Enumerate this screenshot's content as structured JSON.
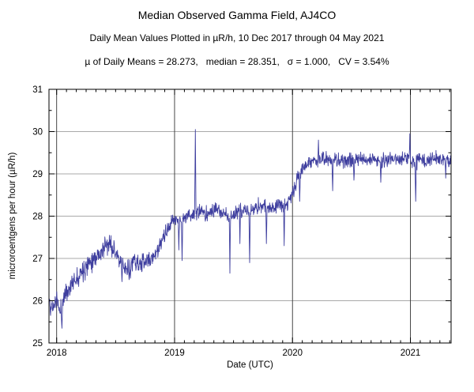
{
  "chart_data": {
    "type": "line",
    "title": "Median Observed Gamma Field, AJ4CO",
    "subtitle": "Daily Mean Values Plotted in µR/h, 10 Dec 2017 through 04 May 2021",
    "stats_line": "µ of Daily Means = 28.273,   median = 28.351,   σ = 1.000,   CV = 3.54%",
    "xlabel": "Date (UTC)",
    "ylabel": "microroentgens per hour (µR/h)",
    "series_name": "daily-mean-gamma-field",
    "line_color": "#3f3f9f",
    "x_start": 2017.935,
    "x_end": 2021.345,
    "ylim": [
      25,
      31
    ],
    "yticks": [
      25,
      26,
      27,
      28,
      29,
      30,
      31
    ],
    "xticks": [
      2018,
      2019,
      2020,
      2021
    ],
    "grid": true,
    "legend": "none",
    "noise_seed": 11,
    "trend_points": [
      [
        2017.935,
        26.0
      ],
      [
        2017.97,
        25.85
      ],
      [
        2018.0,
        26.05
      ],
      [
        2018.03,
        25.7
      ],
      [
        2018.06,
        26.1
      ],
      [
        2018.12,
        26.35
      ],
      [
        2018.18,
        26.6
      ],
      [
        2018.24,
        26.8
      ],
      [
        2018.3,
        27.0
      ],
      [
        2018.36,
        27.1
      ],
      [
        2018.42,
        27.3
      ],
      [
        2018.46,
        27.35
      ],
      [
        2018.5,
        27.15
      ],
      [
        2018.54,
        26.85
      ],
      [
        2018.58,
        26.75
      ],
      [
        2018.62,
        26.8
      ],
      [
        2018.66,
        26.95
      ],
      [
        2018.7,
        26.85
      ],
      [
        2018.74,
        26.9
      ],
      [
        2018.78,
        26.95
      ],
      [
        2018.82,
        27.05
      ],
      [
        2018.86,
        27.2
      ],
      [
        2018.9,
        27.45
      ],
      [
        2018.94,
        27.65
      ],
      [
        2018.98,
        27.9
      ],
      [
        2019.02,
        27.95
      ],
      [
        2019.06,
        27.85
      ],
      [
        2019.1,
        28.0
      ],
      [
        2019.16,
        28.05
      ],
      [
        2019.22,
        28.1
      ],
      [
        2019.28,
        28.05
      ],
      [
        2019.34,
        28.15
      ],
      [
        2019.4,
        28.1
      ],
      [
        2019.46,
        28.0
      ],
      [
        2019.52,
        28.05
      ],
      [
        2019.58,
        28.15
      ],
      [
        2019.64,
        28.1
      ],
      [
        2019.7,
        28.2
      ],
      [
        2019.76,
        28.25
      ],
      [
        2019.82,
        28.2
      ],
      [
        2019.88,
        28.3
      ],
      [
        2019.94,
        28.25
      ],
      [
        2020.0,
        28.5
      ],
      [
        2020.04,
        28.85
      ],
      [
        2020.08,
        29.1
      ],
      [
        2020.12,
        29.25
      ],
      [
        2020.18,
        29.3
      ],
      [
        2020.25,
        29.35
      ],
      [
        2020.32,
        29.3
      ],
      [
        2020.4,
        29.35
      ],
      [
        2020.48,
        29.3
      ],
      [
        2020.56,
        29.35
      ],
      [
        2020.64,
        29.3
      ],
      [
        2020.72,
        29.35
      ],
      [
        2020.8,
        29.3
      ],
      [
        2020.88,
        29.35
      ],
      [
        2020.96,
        29.4
      ],
      [
        2021.02,
        29.25
      ],
      [
        2021.08,
        29.35
      ],
      [
        2021.16,
        29.3
      ],
      [
        2021.24,
        29.35
      ],
      [
        2021.345,
        29.3
      ]
    ],
    "noise_amplitude": [
      [
        2017.935,
        0.16
      ],
      [
        2018.2,
        0.2
      ],
      [
        2018.6,
        0.2
      ],
      [
        2019.0,
        0.14
      ],
      [
        2019.4,
        0.15
      ],
      [
        2019.8,
        0.17
      ],
      [
        2020.1,
        0.14
      ],
      [
        2020.6,
        0.14
      ],
      [
        2021.345,
        0.14
      ]
    ],
    "spikes": [
      [
        2017.95,
        25.65
      ],
      [
        2018.045,
        25.35
      ],
      [
        2018.555,
        26.45
      ],
      [
        2018.615,
        26.5
      ],
      [
        2019.035,
        27.2
      ],
      [
        2019.065,
        26.95
      ],
      [
        2019.175,
        30.05
      ],
      [
        2019.47,
        26.65
      ],
      [
        2019.555,
        27.35
      ],
      [
        2019.635,
        26.9
      ],
      [
        2019.78,
        27.35
      ],
      [
        2019.93,
        27.3
      ],
      [
        2020.06,
        28.35
      ],
      [
        2020.22,
        29.8
      ],
      [
        2020.34,
        28.6
      ],
      [
        2020.52,
        28.85
      ],
      [
        2020.75,
        28.8
      ],
      [
        2020.995,
        29.95
      ],
      [
        2021.045,
        28.35
      ],
      [
        2021.3,
        28.9
      ]
    ]
  }
}
